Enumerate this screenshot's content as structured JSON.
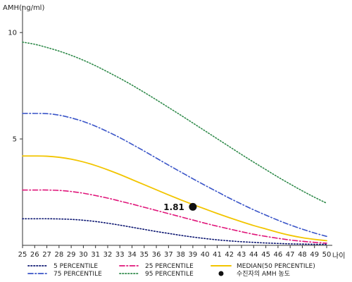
{
  "chart_data": {
    "type": "line",
    "ylabel": "AMH(ng/ml)",
    "xlabel": "나이",
    "xlim": [
      25,
      50
    ],
    "ylim": [
      0,
      11
    ],
    "x_ticks": [
      25,
      26,
      27,
      28,
      29,
      30,
      31,
      32,
      33,
      34,
      35,
      36,
      37,
      38,
      39,
      40,
      41,
      42,
      43,
      44,
      45,
      46,
      47,
      48,
      49,
      50
    ],
    "y_ticks": [
      5,
      10
    ],
    "series": [
      {
        "name": "5 PERCENTILE",
        "color": "#0a1470",
        "dash": "dot",
        "x": [
          25,
          26,
          27,
          28,
          29,
          30,
          31,
          32,
          33,
          34,
          35,
          36,
          37,
          38,
          39,
          40,
          41,
          42,
          43,
          44,
          45,
          46,
          47,
          48,
          49,
          50
        ],
        "y": [
          1.25,
          1.25,
          1.25,
          1.24,
          1.22,
          1.18,
          1.12,
          1.04,
          0.95,
          0.85,
          0.75,
          0.65,
          0.56,
          0.47,
          0.39,
          0.32,
          0.26,
          0.21,
          0.17,
          0.14,
          0.11,
          0.09,
          0.07,
          0.06,
          0.05,
          0.05
        ]
      },
      {
        "name": "25 PERCENTILE",
        "color": "#e0157a",
        "dash": "dashdot",
        "x": [
          25,
          26,
          27,
          28,
          29,
          30,
          31,
          32,
          33,
          34,
          35,
          36,
          37,
          38,
          39,
          40,
          41,
          42,
          43,
          44,
          45,
          46,
          47,
          48,
          49,
          50
        ],
        "y": [
          2.6,
          2.6,
          2.6,
          2.58,
          2.53,
          2.45,
          2.34,
          2.22,
          2.08,
          1.94,
          1.79,
          1.64,
          1.49,
          1.34,
          1.19,
          1.04,
          0.9,
          0.77,
          0.64,
          0.52,
          0.42,
          0.33,
          0.25,
          0.19,
          0.14,
          0.1
        ]
      },
      {
        "name": "MEDIAN(50 PERCENTILE)",
        "color": "#f2c500",
        "dash": "solid",
        "x": [
          25,
          26,
          27,
          28,
          29,
          30,
          31,
          32,
          33,
          34,
          35,
          36,
          37,
          38,
          39,
          40,
          41,
          42,
          43,
          44,
          45,
          46,
          47,
          48,
          49,
          50
        ],
        "y": [
          4.2,
          4.2,
          4.19,
          4.14,
          4.05,
          3.92,
          3.75,
          3.55,
          3.33,
          3.09,
          2.85,
          2.61,
          2.37,
          2.14,
          1.92,
          1.71,
          1.5,
          1.3,
          1.11,
          0.93,
          0.77,
          0.61,
          0.47,
          0.36,
          0.28,
          0.22
        ]
      },
      {
        "name": "75 PERCENTILE",
        "color": "#3a55c8",
        "dash": "dashdot",
        "x": [
          25,
          26,
          27,
          28,
          29,
          30,
          31,
          32,
          33,
          34,
          35,
          36,
          37,
          38,
          39,
          40,
          41,
          42,
          43,
          44,
          45,
          46,
          47,
          48,
          49,
          50
        ],
        "y": [
          6.2,
          6.2,
          6.19,
          6.12,
          5.99,
          5.82,
          5.6,
          5.34,
          5.06,
          4.75,
          4.43,
          4.1,
          3.77,
          3.45,
          3.13,
          2.82,
          2.52,
          2.22,
          1.94,
          1.67,
          1.42,
          1.18,
          0.96,
          0.76,
          0.58,
          0.42
        ]
      },
      {
        "name": "95 PERCENTILE",
        "color": "#2f8a4a",
        "dash": "dot",
        "x": [
          25,
          26,
          27,
          28,
          29,
          30,
          31,
          32,
          33,
          34,
          35,
          36,
          37,
          38,
          39,
          40,
          41,
          42,
          43,
          44,
          45,
          46,
          47,
          48,
          49,
          50
        ],
        "y": [
          9.55,
          9.45,
          9.3,
          9.13,
          8.93,
          8.7,
          8.44,
          8.15,
          7.85,
          7.53,
          7.19,
          6.84,
          6.48,
          6.12,
          5.75,
          5.38,
          5.01,
          4.64,
          4.27,
          3.91,
          3.56,
          3.21,
          2.88,
          2.56,
          2.26,
          1.98
        ]
      }
    ],
    "points": [
      {
        "name": "수진자의 AMH 농도",
        "x": 39,
        "y": 1.81,
        "label": "1.81",
        "color": "#111111"
      }
    ],
    "legend": {
      "placement": "bottom",
      "items": [
        "5 PERCENTILE",
        "25 PERCENTILE",
        "MEDIAN(50 PERCENTILE)",
        "75 PERCENTILE",
        "95 PERCENTILE",
        "수진자의 AMH 농도"
      ]
    },
    "grid": false
  }
}
